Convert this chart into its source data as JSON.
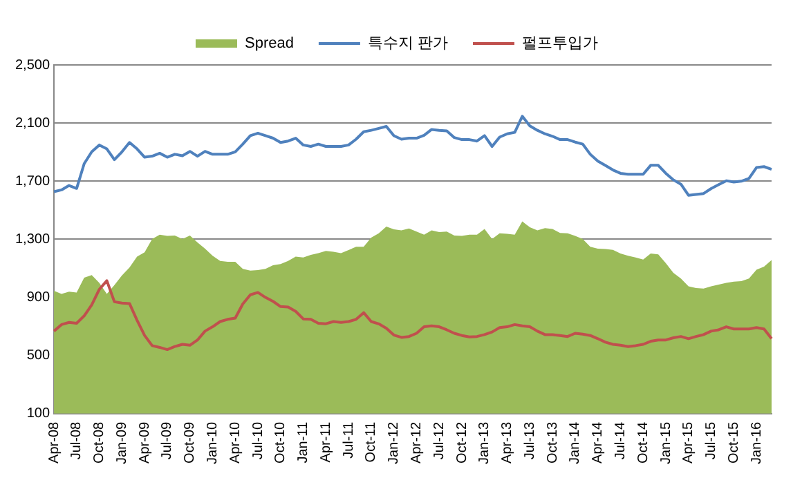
{
  "chart_data": {
    "type": "line",
    "categories": [
      "Apr-08",
      null,
      null,
      "Jul-08",
      null,
      null,
      "Oct-08",
      null,
      null,
      "Jan-09",
      null,
      null,
      "Apr-09",
      null,
      null,
      "Jul-09",
      null,
      null,
      "Oct-09",
      null,
      null,
      "Jan-10",
      null,
      null,
      "Apr-10",
      null,
      null,
      "Jul-10",
      null,
      null,
      "Oct-10",
      null,
      null,
      "Jan-11",
      null,
      null,
      "Apr-11",
      null,
      null,
      "Jul-11",
      null,
      null,
      "Oct-11",
      null,
      null,
      "Jan-12",
      null,
      null,
      "Apr-12",
      null,
      null,
      "Jul-12",
      null,
      null,
      "Oct-12",
      null,
      null,
      "Jan-13",
      null,
      null,
      "Apr-13",
      null,
      null,
      "Jul-13",
      null,
      null,
      "Oct-13",
      null,
      null,
      "Jan-14",
      null,
      null,
      "Apr-14",
      null,
      null,
      "Jul-14",
      null,
      null,
      "Oct-14",
      null,
      null,
      "Jan-15",
      null,
      null,
      "Apr-15",
      null,
      null,
      "Jul-15",
      null,
      null,
      "Oct-15",
      null,
      null,
      "Jan-16",
      null,
      null
    ],
    "series": [
      {
        "name": "Spread",
        "type": "area",
        "color": "#9bbb59",
        "values": [
          946,
          924,
          940,
          934,
          1036,
          1054,
          1000,
          924,
          985,
          1051,
          1106,
          1181,
          1211,
          1302,
          1332,
          1323,
          1326,
          1302,
          1326,
          1278,
          1236,
          1187,
          1151,
          1145,
          1145,
          1097,
          1085,
          1088,
          1097,
          1121,
          1130,
          1151,
          1181,
          1175,
          1193,
          1205,
          1220,
          1214,
          1205,
          1226,
          1248,
          1248,
          1311,
          1341,
          1387,
          1368,
          1362,
          1374,
          1353,
          1332,
          1362,
          1350,
          1353,
          1326,
          1323,
          1332,
          1332,
          1371,
          1302,
          1341,
          1338,
          1332,
          1423,
          1383,
          1362,
          1377,
          1371,
          1344,
          1341,
          1323,
          1302,
          1248,
          1236,
          1233,
          1227,
          1202,
          1187,
          1175,
          1160,
          1202,
          1196,
          1136,
          1069,
          1030,
          976,
          964,
          961,
          976,
          988,
          1000,
          1009,
          1012,
          1030,
          1091,
          1112,
          1157
        ]
      },
      {
        "name": "특수지 판가",
        "type": "line",
        "color": "#4f81bd",
        "values": [
          1628,
          1640,
          1670,
          1650,
          1820,
          1902,
          1949,
          1922,
          1848,
          1902,
          1966,
          1922,
          1865,
          1872,
          1892,
          1865,
          1885,
          1875,
          1905,
          1872,
          1905,
          1885,
          1885,
          1885,
          1902,
          1955,
          2013,
          2030,
          2013,
          1996,
          1966,
          1976,
          1996,
          1949,
          1939,
          1955,
          1939,
          1939,
          1939,
          1949,
          1989,
          2040,
          2050,
          2063,
          2077,
          2013,
          1989,
          1996,
          1996,
          2016,
          2056,
          2050,
          2046,
          2000,
          1986,
          1986,
          1976,
          2013,
          1939,
          2003,
          2026,
          2036,
          2147,
          2080,
          2050,
          2026,
          2009,
          1986,
          1986,
          1969,
          1955,
          1885,
          1838,
          1808,
          1777,
          1754,
          1748,
          1748,
          1748,
          1809,
          1809,
          1754,
          1709,
          1679,
          1603,
          1609,
          1615,
          1649,
          1676,
          1703,
          1694,
          1700,
          1718,
          1794,
          1800,
          1782
        ]
      },
      {
        "name": "펄프투입가",
        "type": "line",
        "color": "#c0504d",
        "values": [
          668,
          713,
          728,
          722,
          773,
          849,
          955,
          1015,
          870,
          861,
          858,
          743,
          638,
          568,
          556,
          541,
          562,
          577,
          571,
          607,
          668,
          698,
          734,
          749,
          758,
          855,
          918,
          934,
          900,
          873,
          837,
          834,
          804,
          752,
          749,
          722,
          719,
          734,
          728,
          734,
          749,
          795,
          734,
          718,
          688,
          641,
          625,
          631,
          653,
          698,
          704,
          698,
          677,
          653,
          638,
          628,
          631,
          644,
          662,
          692,
          698,
          713,
          704,
          698,
          668,
          644,
          644,
          638,
          631,
          653,
          647,
          638,
          616,
          592,
          577,
          571,
          562,
          568,
          577,
          598,
          607,
          607,
          622,
          631,
          616,
          631,
          644,
          668,
          677,
          698,
          683,
          683,
          683,
          692,
          683,
          616
        ]
      }
    ],
    "ylim": [
      100,
      2500
    ],
    "yticks": [
      100,
      500,
      900,
      {
        "value": 1300,
        "label": "1,300"
      },
      {
        "value": 1700,
        "label": "1,700"
      },
      {
        "value": 2100,
        "label": "2,100"
      },
      {
        "value": 2500,
        "label": "2,500"
      }
    ],
    "grid": "y",
    "legend": "top",
    "marker": "none",
    "line_style": "solid"
  }
}
